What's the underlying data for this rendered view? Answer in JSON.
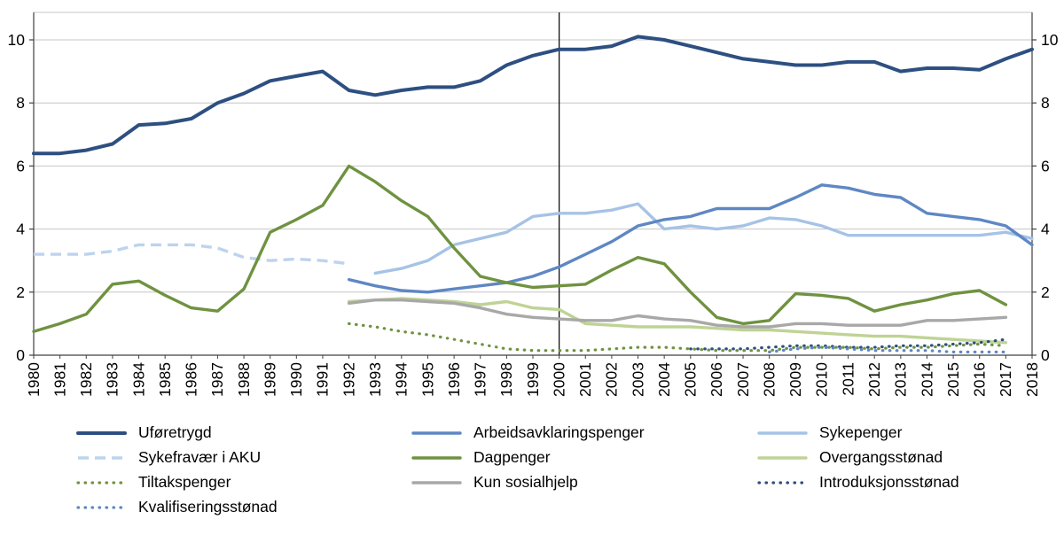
{
  "chart_data": {
    "type": "line",
    "title": "",
    "xlabel": "",
    "ylabel": "",
    "x_start": 1980,
    "x_end": 2018,
    "ylim": [
      0,
      10
    ],
    "yticks": [
      0,
      2,
      4,
      6,
      8,
      10
    ],
    "y_axis_sides": [
      "left",
      "right"
    ],
    "grid": "horizontal",
    "reference_line_x": 2000,
    "x_tick_labels": [
      "1980",
      "1981",
      "1982",
      "1983",
      "1984",
      "1985",
      "1986",
      "1987",
      "1988",
      "1989",
      "1990",
      "1991",
      "1992",
      "1993",
      "1994",
      "1995",
      "1996",
      "1997",
      "1998",
      "1999",
      "2000",
      "2001",
      "2002",
      "2003",
      "2004",
      "2005",
      "2006",
      "2007",
      "2008",
      "2009",
      "2010",
      "2011",
      "2012",
      "2013",
      "2014",
      "2015",
      "2016",
      "2017",
      "2018"
    ],
    "series": [
      {
        "name": "Uføretrygd",
        "color": "#2D4F81",
        "style": "solid",
        "width": 4,
        "start": 1980,
        "values": [
          6.4,
          6.4,
          6.5,
          6.7,
          7.3,
          7.35,
          7.5,
          8.0,
          8.3,
          8.7,
          8.85,
          9.0,
          8.4,
          8.25,
          8.4,
          8.5,
          8.5,
          8.7,
          9.2,
          9.5,
          9.7,
          9.7,
          9.8,
          10.1,
          10.0,
          9.8,
          9.6,
          9.4,
          9.3,
          9.2,
          9.2,
          9.3,
          9.3,
          9.0,
          9.1,
          9.1,
          9.05,
          9.4,
          9.7
        ]
      },
      {
        "name": "Sykefravær i AKU",
        "color": "#BDD3EE",
        "style": "dashed",
        "width": 3.4,
        "start": 1980,
        "values": [
          3.2,
          3.2,
          3.2,
          3.3,
          3.5,
          3.5,
          3.5,
          3.4,
          3.1,
          3.0,
          3.05,
          3.0,
          2.9
        ]
      },
      {
        "name": "Sykepenger",
        "color": "#A6C3E6",
        "style": "solid",
        "width": 3.4,
        "start": 1993,
        "values": [
          2.6,
          2.75,
          3.0,
          3.5,
          3.7,
          3.9,
          4.4,
          4.5,
          4.5,
          4.6,
          4.8,
          4.0,
          4.1,
          4.0,
          4.1,
          4.35,
          4.3,
          4.1,
          3.8,
          3.8,
          3.8,
          3.8,
          3.8,
          3.8,
          3.9,
          3.7
        ]
      },
      {
        "name": "Arbeidsavklaringspenger",
        "color": "#5E87C4",
        "style": "solid",
        "width": 3.4,
        "start": 1992,
        "values": [
          2.4,
          2.2,
          2.05,
          2.0,
          2.1,
          2.2,
          2.3,
          2.5,
          2.8,
          3.2,
          3.6,
          4.1,
          4.3,
          4.4,
          4.65,
          4.65,
          4.65,
          5.0,
          5.4,
          5.3,
          5.1,
          5.0,
          4.5,
          4.4,
          4.3,
          4.1,
          3.5
        ]
      },
      {
        "name": "Dagpenger",
        "color": "#6F9240",
        "style": "solid",
        "width": 3.4,
        "start": 1980,
        "values": [
          0.75,
          1.0,
          1.3,
          2.25,
          2.35,
          1.9,
          1.5,
          1.4,
          2.1,
          3.9,
          4.3,
          4.75,
          6.0,
          5.5,
          4.9,
          4.4,
          3.4,
          2.5,
          2.3,
          2.15,
          2.2,
          2.25,
          2.7,
          3.1,
          2.9,
          2.0,
          1.2,
          1.0,
          1.1,
          1.95,
          1.9,
          1.8,
          1.4,
          1.6,
          1.75,
          1.95,
          2.05,
          1.6
        ]
      },
      {
        "name": "Overgangsstønad",
        "color": "#BFD395",
        "style": "solid",
        "width": 3.4,
        "start": 1992,
        "values": [
          1.7,
          1.75,
          1.8,
          1.75,
          1.7,
          1.6,
          1.7,
          1.5,
          1.45,
          1.0,
          0.95,
          0.9,
          0.9,
          0.9,
          0.85,
          0.8,
          0.8,
          0.75,
          0.7,
          0.65,
          0.6,
          0.6,
          0.55,
          0.5,
          0.45,
          0.4
        ]
      },
      {
        "name": "Kun sosialhjelp",
        "color": "#A8A8A8",
        "style": "solid",
        "width": 3.4,
        "start": 1992,
        "values": [
          1.65,
          1.75,
          1.75,
          1.7,
          1.65,
          1.5,
          1.3,
          1.2,
          1.15,
          1.1,
          1.1,
          1.25,
          1.15,
          1.1,
          0.95,
          0.9,
          0.9,
          1.0,
          1.0,
          0.95,
          0.95,
          0.95,
          1.1,
          1.1,
          1.15,
          1.2
        ]
      },
      {
        "name": "Tiltakspenger",
        "color": "#6F9240",
        "style": "dotted",
        "width": 3.2,
        "start": 1992,
        "values": [
          1.0,
          0.9,
          0.75,
          0.65,
          0.5,
          0.35,
          0.2,
          0.15,
          0.15,
          0.15,
          0.2,
          0.25,
          0.25,
          0.2,
          0.15,
          0.15,
          0.15,
          0.25,
          0.25,
          0.25,
          0.2,
          0.25,
          0.25,
          0.3,
          0.35,
          0.3
        ]
      },
      {
        "name": "Introduksjonsstønad",
        "color": "#2D4F81",
        "style": "dotted",
        "width": 3.2,
        "start": 2005,
        "values": [
          0.2,
          0.2,
          0.2,
          0.25,
          0.3,
          0.3,
          0.25,
          0.25,
          0.3,
          0.3,
          0.35,
          0.4,
          0.5
        ]
      },
      {
        "name": "Kvalifiseringsstønad",
        "color": "#5E87C4",
        "style": "dotted",
        "width": 3.2,
        "start": 2008,
        "values": [
          0.1,
          0.2,
          0.25,
          0.2,
          0.15,
          0.15,
          0.15,
          0.1,
          0.1,
          0.1
        ]
      }
    ],
    "legend_columns": [
      [
        "Uføretrygd",
        "Sykefravær i AKU",
        "Tiltakspenger",
        "Kvalifiseringsstønad"
      ],
      [
        "Arbeidsavklaringspenger",
        "Dagpenger",
        "Kun sosialhjelp"
      ],
      [
        "Sykepenger",
        "Overgangsstønad",
        "Introduksjonsstønad"
      ]
    ],
    "legend_position": "bottom"
  },
  "colors": {
    "background": "#ffffff",
    "gridline": "#C6C6C6",
    "axis": "#404040",
    "reference_line": "#000000",
    "tick_label": "#000000"
  }
}
